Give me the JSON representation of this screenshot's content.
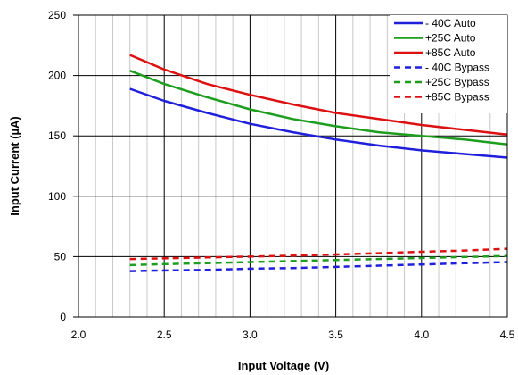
{
  "chart_data": {
    "type": "line",
    "xlabel": "Input  Voltage (V)",
    "ylabel": "Input Current (µA)",
    "xlim": [
      2.0,
      4.5
    ],
    "ylim": [
      0,
      250
    ],
    "x_ticks": [
      "2.0",
      "2.5",
      "3.0",
      "3.5",
      "4.0",
      "4.5"
    ],
    "y_ticks": [
      "0",
      "50",
      "100",
      "150",
      "200",
      "250"
    ],
    "grid": true,
    "legend_position": "top-right",
    "series": [
      {
        "name": "- 40C Auto",
        "color": "#1f1fdc",
        "style": "solid",
        "points": [
          [
            2.3,
            189
          ],
          [
            2.5,
            179
          ],
          [
            2.75,
            169
          ],
          [
            3.0,
            160
          ],
          [
            3.25,
            153
          ],
          [
            3.5,
            147
          ],
          [
            3.75,
            142
          ],
          [
            4.0,
            138
          ],
          [
            4.25,
            135
          ],
          [
            4.5,
            132
          ]
        ]
      },
      {
        "name": "+25C Auto",
        "color": "#1e9e1e",
        "style": "solid",
        "points": [
          [
            2.3,
            204
          ],
          [
            2.5,
            193
          ],
          [
            2.75,
            182
          ],
          [
            3.0,
            172
          ],
          [
            3.25,
            164
          ],
          [
            3.5,
            158
          ],
          [
            3.75,
            153
          ],
          [
            4.0,
            150
          ],
          [
            4.25,
            147
          ],
          [
            4.5,
            143
          ]
        ]
      },
      {
        "name": "+85C Auto",
        "color": "#dd1111",
        "style": "solid",
        "points": [
          [
            2.3,
            217
          ],
          [
            2.5,
            205
          ],
          [
            2.75,
            193
          ],
          [
            3.0,
            184
          ],
          [
            3.25,
            176
          ],
          [
            3.5,
            169
          ],
          [
            3.75,
            164
          ],
          [
            4.0,
            159
          ],
          [
            4.25,
            155
          ],
          [
            4.5,
            151
          ]
        ]
      },
      {
        "name": "- 40C Bypass",
        "color": "#1f1fdc",
        "style": "dashed",
        "points": [
          [
            2.3,
            38
          ],
          [
            2.5,
            38.5
          ],
          [
            2.75,
            39
          ],
          [
            3.0,
            40
          ],
          [
            3.25,
            40.5
          ],
          [
            3.5,
            41.5
          ],
          [
            3.75,
            42.5
          ],
          [
            4.0,
            43.5
          ],
          [
            4.25,
            44.5
          ],
          [
            4.5,
            45.5
          ]
        ]
      },
      {
        "name": "+25C Bypass",
        "color": "#1e9e1e",
        "style": "dashed",
        "points": [
          [
            2.3,
            43
          ],
          [
            2.5,
            43.8
          ],
          [
            2.75,
            44.6
          ],
          [
            3.0,
            45.5
          ],
          [
            3.25,
            46.3
          ],
          [
            3.5,
            47.2
          ],
          [
            3.75,
            48
          ],
          [
            4.0,
            48.8
          ],
          [
            4.25,
            49.7
          ],
          [
            4.5,
            50.5
          ]
        ]
      },
      {
        "name": "+85C Bypass",
        "color": "#dd1111",
        "style": "dashed",
        "points": [
          [
            2.3,
            48
          ],
          [
            2.5,
            48.6
          ],
          [
            2.75,
            49.3
          ],
          [
            3.0,
            50
          ],
          [
            3.25,
            50.8
          ],
          [
            3.5,
            51.8
          ],
          [
            3.75,
            52.8
          ],
          [
            4.0,
            54
          ],
          [
            4.25,
            55
          ],
          [
            4.5,
            56.5
          ]
        ]
      }
    ]
  }
}
